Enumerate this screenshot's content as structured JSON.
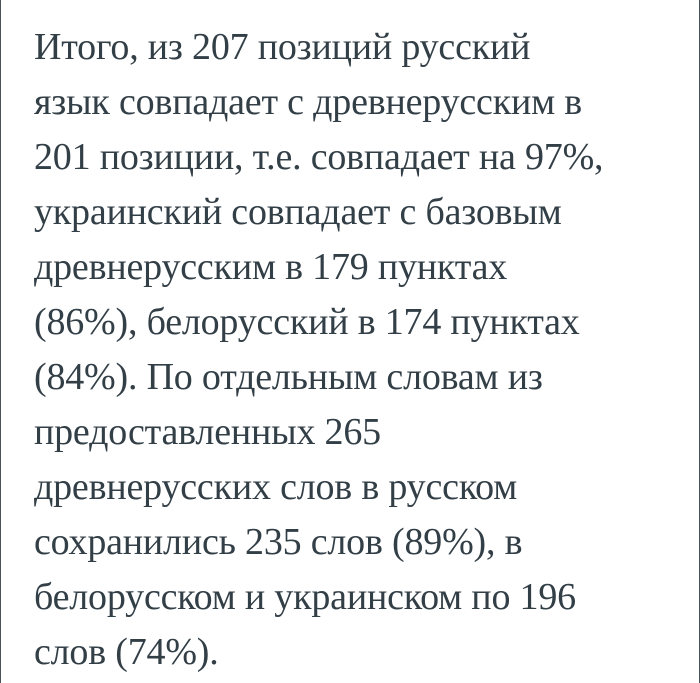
{
  "page": {
    "background_color": "#ffffff",
    "edge_line_color": "#49535a",
    "text_color": "#333f47"
  },
  "article": {
    "full_text": "Итого, из 207 позиций русский язык совпадает с древнерусским в 201 позиции, т.е. совпадает на 97%, украинский совпадает с базовым древнерусским в 179 пунктах (86%), белорусский в 174 пунктах (84%). По отдельным словам из предоставленных 265 древнерусских слов в русском сохранились 235 слов (89%), в белорусском и украинском по 196 слов (74%).",
    "lines": [
      "Итого, из 207 позиций русский",
      "язык совпадает с древнерусским в",
      "201 позиции, т.е. совпадает на 97%,",
      "украинский совпадает с базовым",
      "древнерусским в 179 пунктах",
      "(86%), белорусский в 174 пунктах",
      "(84%). По отдельным словам из",
      "предоставленных 265",
      "древнерусских слов в русском",
      "сохранились 235 слов (89%), в",
      "белорусском и украинском по 196",
      "слов (74%)."
    ],
    "statistics": {
      "total_positions": 207,
      "russian_matches_positions": 201,
      "russian_match_percent": "97%",
      "ukrainian_matches_points": 179,
      "ukrainian_match_percent": "86%",
      "belarusian_matches_points": 174,
      "belarusian_match_percent": "84%",
      "old_russian_words_provided": 265,
      "russian_words_preserved": 235,
      "russian_words_percent": "89%",
      "belarusian_ukrainian_words_preserved": 196,
      "belarusian_ukrainian_words_percent": "74%"
    }
  }
}
